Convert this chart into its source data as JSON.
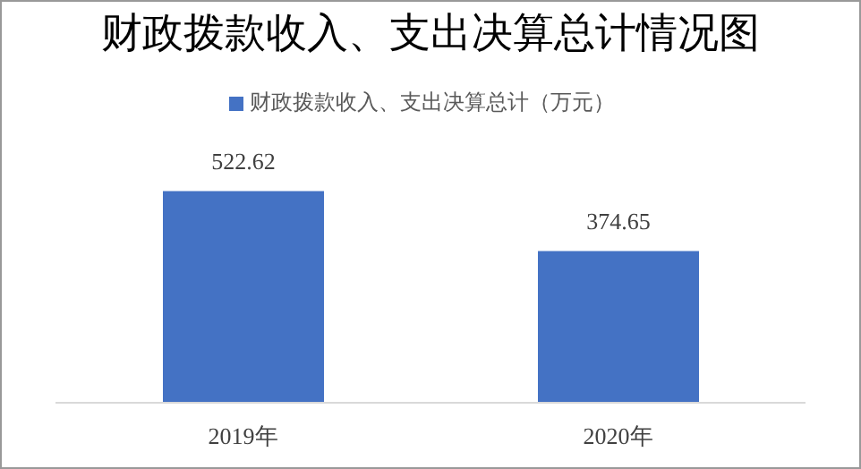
{
  "chart_data": {
    "type": "bar",
    "title": "财政拨款收入、支出决算总计情况图",
    "categories": [
      "2019年",
      "2020年"
    ],
    "series": [
      {
        "name": "财政拨款收入、支出决算总计（万元）",
        "color": "#4472c4",
        "values": [
          522.62,
          374.65
        ]
      }
    ],
    "data_labels": true,
    "legend": "top",
    "grid": false
  }
}
